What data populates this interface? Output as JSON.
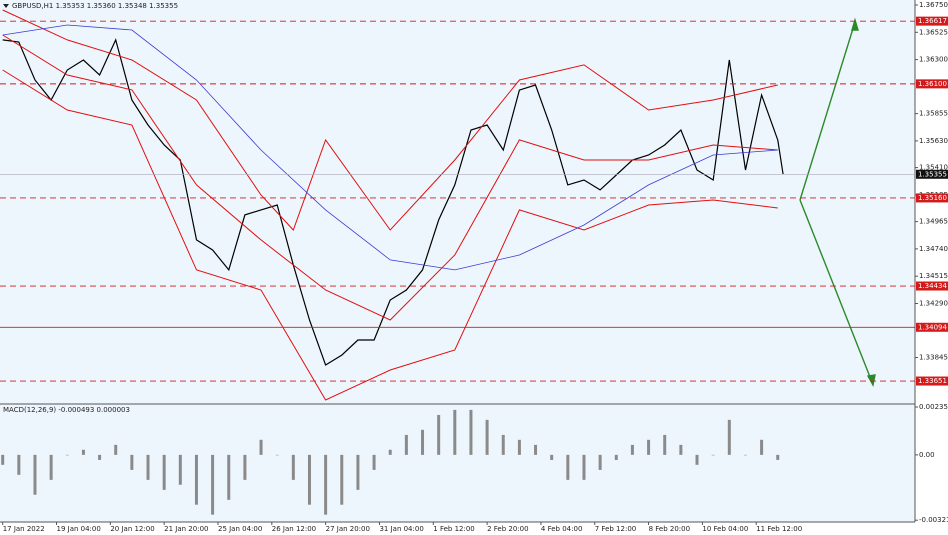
{
  "chart_data": [
    {
      "type": "line",
      "title": "GBPUSD,H1  1.35353 1.35360 1.35348 1.35355",
      "xlim": [
        -0.5,
        169.5
      ],
      "ylim": [
        1.3347,
        1.3675
      ],
      "xticks": [
        {
          "value": 0,
          "label": "17 Jan 2022"
        },
        {
          "value": 10,
          "label": "19 Jan 04:00"
        },
        {
          "value": 20,
          "label": "20 Jan 12:00"
        },
        {
          "value": 30,
          "label": "21 Jan 20:00"
        },
        {
          "value": 40,
          "label": "25 Jan 04:00"
        },
        {
          "value": 50,
          "label": "26 Jan 12:00"
        },
        {
          "value": 60,
          "label": "27 Jan 20:00"
        },
        {
          "value": 70,
          "label": "31 Jan 04:00"
        },
        {
          "value": 80,
          "label": "1 Feb 12:00"
        },
        {
          "value": 90,
          "label": "2 Feb 20:00"
        },
        {
          "value": 100,
          "label": "4 Feb 04:00"
        },
        {
          "value": 110,
          "label": "7 Feb 12:00"
        },
        {
          "value": 120,
          "label": "8 Feb 20:00"
        },
        {
          "value": 130,
          "label": "10 Feb 04:00"
        },
        {
          "value": 140,
          "label": "11 Feb 12:00"
        }
      ],
      "yticks": [
        {
          "value": 1.3675,
          "label": "1.36750"
        },
        1.36525,
        {
          "value": 1.363,
          "label": "1.36300"
        },
        1.35855,
        {
          "value": 1.3563,
          "label": "1.35630"
        },
        {
          "value": 1.3541,
          "label": "1.35410"
        },
        1.35185,
        1.34965,
        {
          "value": 1.3474,
          "label": "1.34740"
        },
        1.34515,
        {
          "value": 1.3429,
          "label": "1.34290"
        },
        1.33845
      ],
      "levels": [
        {
          "value": 1.36617,
          "dashed": true
        },
        {
          "value": 1.361,
          "label": "1.36100",
          "dashed": true
        },
        {
          "value": 1.3516,
          "label": "1.35160",
          "dashed": true
        },
        {
          "value": 1.34434,
          "dashed": true
        },
        {
          "value": 1.34094,
          "dashed": false
        },
        {
          "value": 1.33651,
          "dashed": true
        }
      ],
      "level_color": "#d41a1a",
      "last_price": 1.35355,
      "series": [
        {
          "color": "#000000",
          "width": 1.2,
          "x": [
            0,
            3,
            6,
            9,
            12,
            15,
            18,
            21,
            24,
            27,
            30,
            33,
            36,
            39,
            42,
            45,
            48,
            51,
            54,
            57,
            60,
            63,
            66,
            69,
            72,
            75,
            78,
            81,
            84,
            87,
            90,
            93,
            96,
            99,
            102,
            105,
            108,
            111,
            114,
            117,
            120,
            123,
            126,
            129,
            132,
            135,
            138,
            141,
            144,
            145
          ],
          "values": [
            1.36462,
            1.36445,
            1.36132,
            1.35967,
            1.36214,
            1.36297,
            1.36173,
            1.36462,
            1.35967,
            1.35761,
            1.35596,
            1.35473,
            1.34814,
            1.34731,
            1.34567,
            1.3502,
            1.35061,
            1.35102,
            1.34608,
            1.34154,
            1.33783,
            1.33865,
            1.33989,
            1.33989,
            1.34319,
            1.34401,
            1.34567,
            1.34979,
            1.35267,
            1.3572,
            1.35761,
            1.35555,
            1.36049,
            1.36091,
            1.3572,
            1.35267,
            1.35308,
            1.35226,
            1.35349,
            1.35473,
            1.35514,
            1.35596,
            1.3572,
            1.3539,
            1.35308,
            1.36297,
            1.3539,
            1.36008,
            1.35637,
            1.35355
          ]
        },
        {
          "color": "#e01010",
          "width": 1,
          "x": [
            0,
            12,
            24,
            36,
            48,
            54,
            60,
            72,
            84,
            96,
            108,
            120,
            132,
            144
          ],
          "values": [
            1.36709,
            1.36462,
            1.36297,
            1.35967,
            1.35184,
            1.34896,
            1.35638,
            1.34896,
            1.35473,
            1.36132,
            1.36256,
            1.35885,
            1.35967,
            1.36091
          ]
        },
        {
          "color": "#e01010",
          "width": 1,
          "x": [
            0,
            12,
            24,
            36,
            48,
            60,
            72,
            84,
            96,
            108,
            120,
            132,
            144
          ],
          "values": [
            1.36503,
            1.36173,
            1.3605,
            1.35267,
            1.34814,
            1.34401,
            1.34154,
            1.3469,
            1.35638,
            1.35473,
            1.35473,
            1.35596,
            1.35555
          ]
        },
        {
          "color": "#e01010",
          "width": 1,
          "x": [
            0,
            12,
            24,
            36,
            48,
            60,
            72,
            84,
            96,
            108,
            120,
            132,
            144
          ],
          "values": [
            1.36214,
            1.35885,
            1.35761,
            1.34567,
            1.34401,
            1.33495,
            1.33742,
            1.33907,
            1.35061,
            1.34896,
            1.35102,
            1.35143,
            1.35077
          ]
        },
        {
          "color": "#3a3ad0",
          "width": 0.8,
          "x": [
            0,
            12,
            24,
            36,
            48,
            60,
            72,
            84,
            96,
            108,
            120,
            132,
            144
          ],
          "values": [
            1.36503,
            1.36585,
            1.36544,
            1.36132,
            1.35555,
            1.35061,
            1.34649,
            1.34567,
            1.3469,
            1.34937,
            1.35267,
            1.35514,
            1.35555
          ]
        }
      ]
    },
    {
      "type": "bar",
      "title": "MACD(12,26,9) -0.000493 0.000003",
      "xlim": [
        -0.5,
        169.5
      ],
      "ylim": [
        -0.0033,
        0.00245
      ],
      "yticks": [
        0.002352,
        {
          "value": 0,
          "label": "0.00"
        },
        -0.003212
      ],
      "color": "#8a8a8a",
      "x": [
        0,
        3,
        6,
        9,
        12,
        15,
        18,
        21,
        24,
        27,
        30,
        33,
        36,
        39,
        42,
        45,
        48,
        51,
        54,
        57,
        60,
        63,
        66,
        69,
        72,
        75,
        78,
        81,
        84,
        87,
        90,
        93,
        96,
        99,
        102,
        105,
        108,
        111,
        114,
        117,
        120,
        123,
        126,
        129,
        132,
        135,
        138,
        141,
        144
      ],
      "values": [
        -0.00049,
        -0.00098,
        -0.00196,
        -0.00123,
        0,
        0.00025,
        -0.00025,
        0.00049,
        -0.00074,
        -0.00123,
        -0.00172,
        -0.00147,
        -0.00245,
        -0.00294,
        -0.00221,
        -0.00123,
        0.00074,
        0,
        -0.00123,
        -0.00245,
        -0.00294,
        -0.00245,
        -0.00172,
        -0.00074,
        0.00025,
        0.00098,
        0.00123,
        0.00196,
        0.00221,
        0.00221,
        0.00172,
        0.00098,
        0.00074,
        0.00049,
        -0.00025,
        -0.00123,
        -0.00123,
        -0.00074,
        -0.00025,
        0.00049,
        0.00074,
        0.00098,
        0.00049,
        -0.00049,
        0,
        0.00172,
        0,
        0.00074,
        -0.00025
      ]
    }
  ]
}
